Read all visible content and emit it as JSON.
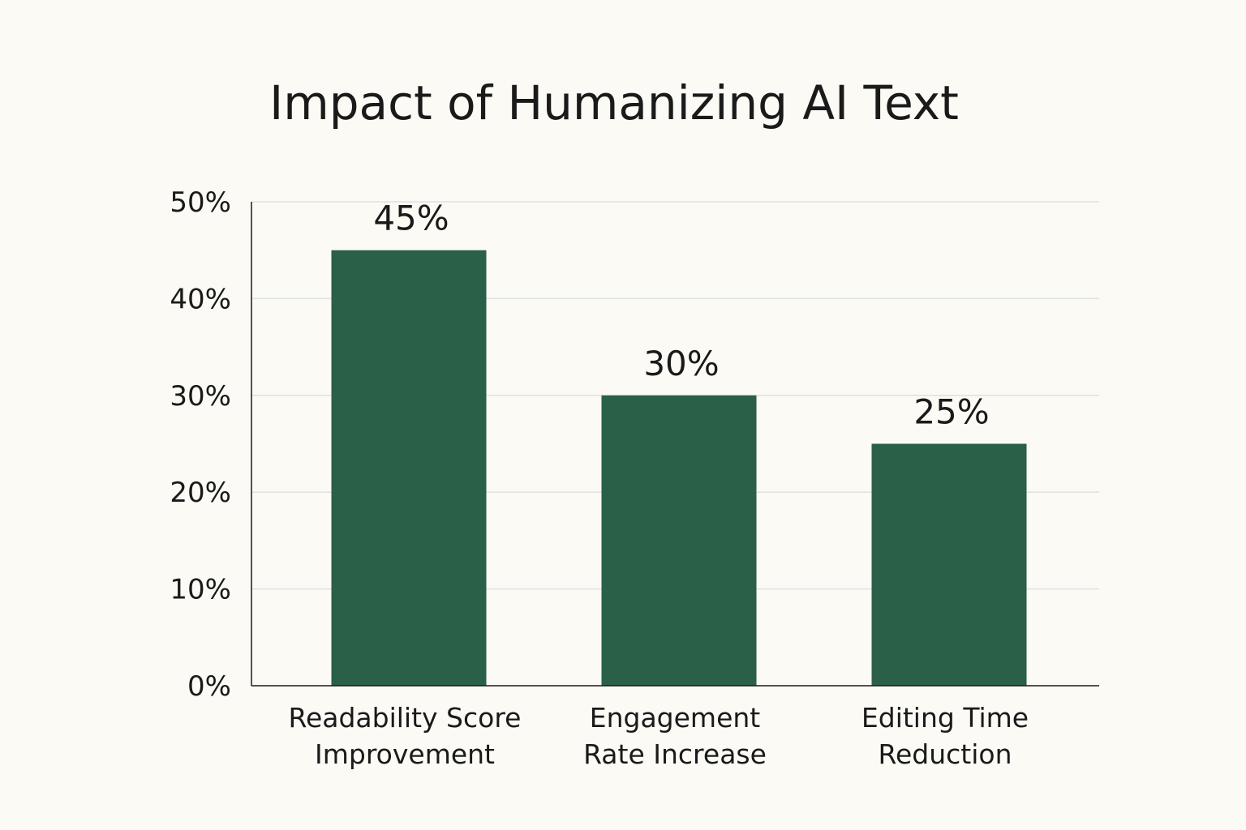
{
  "chart_data": {
    "type": "bar",
    "title": "Impact of Humanizing AI Text",
    "categories": [
      [
        "Readability Score",
        "Improvement"
      ],
      [
        "Engagement",
        "Rate Increase"
      ],
      [
        "Editing Time",
        "Reduction"
      ]
    ],
    "values": [
      45,
      30,
      25
    ],
    "value_labels": [
      "45%",
      "30%",
      "25%"
    ],
    "ylim": [
      0,
      50
    ],
    "yticks": [
      0,
      10,
      20,
      30,
      40,
      50
    ],
    "ytick_labels": [
      "0%",
      "10%",
      "20%",
      "30%",
      "40%",
      "50%"
    ],
    "grid": true,
    "legend": "none",
    "colors": {
      "bar": "#2a5f48",
      "grid": "#dde3de",
      "axis": "#1a1a1a",
      "background": "#fbfaf5"
    }
  }
}
